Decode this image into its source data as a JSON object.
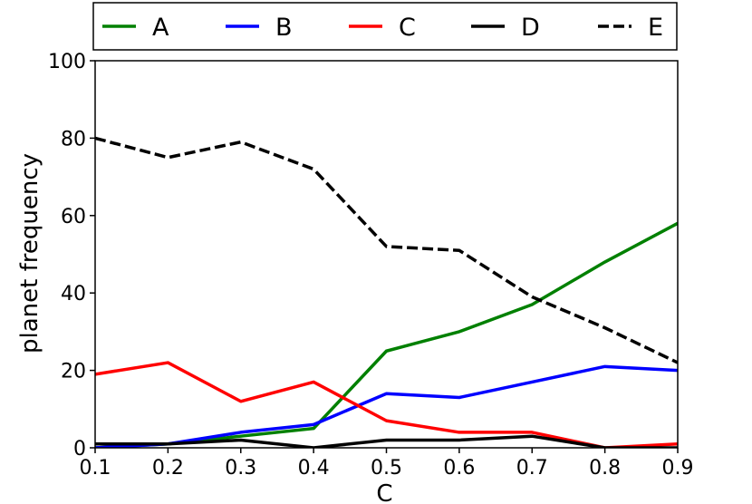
{
  "chart_data": {
    "type": "line",
    "title": "",
    "xlabel": "C",
    "ylabel": "planet frequency",
    "xlim": [
      0.1,
      0.9
    ],
    "ylim": [
      0,
      100
    ],
    "xticks": [
      "0.1",
      "0.2",
      "0.3",
      "0.4",
      "0.5",
      "0.6",
      "0.7",
      "0.8",
      "0.9"
    ],
    "yticks": [
      "0",
      "20",
      "40",
      "60",
      "80",
      "100"
    ],
    "grid": false,
    "legend_position": "top",
    "x": [
      0.1,
      0.2,
      0.3,
      0.4,
      0.5,
      0.6,
      0.7,
      0.8,
      0.9
    ],
    "series": [
      {
        "name": "A",
        "color": "#008000",
        "style": "solid",
        "values": [
          0,
          1,
          3,
          5,
          25,
          30,
          37,
          48,
          58
        ]
      },
      {
        "name": "B",
        "color": "#0000ff",
        "style": "solid",
        "values": [
          0,
          1,
          4,
          6,
          14,
          13,
          17,
          21,
          20
        ]
      },
      {
        "name": "C",
        "color": "#ff0000",
        "style": "solid",
        "values": [
          19,
          22,
          12,
          17,
          7,
          4,
          4,
          0,
          1
        ]
      },
      {
        "name": "D",
        "color": "#000000",
        "style": "solid",
        "values": [
          1,
          1,
          2,
          0,
          2,
          2,
          3,
          0,
          0
        ]
      },
      {
        "name": "E",
        "color": "#000000",
        "style": "dashed",
        "values": [
          80,
          75,
          79,
          72,
          52,
          51,
          39,
          31,
          22
        ]
      }
    ]
  }
}
